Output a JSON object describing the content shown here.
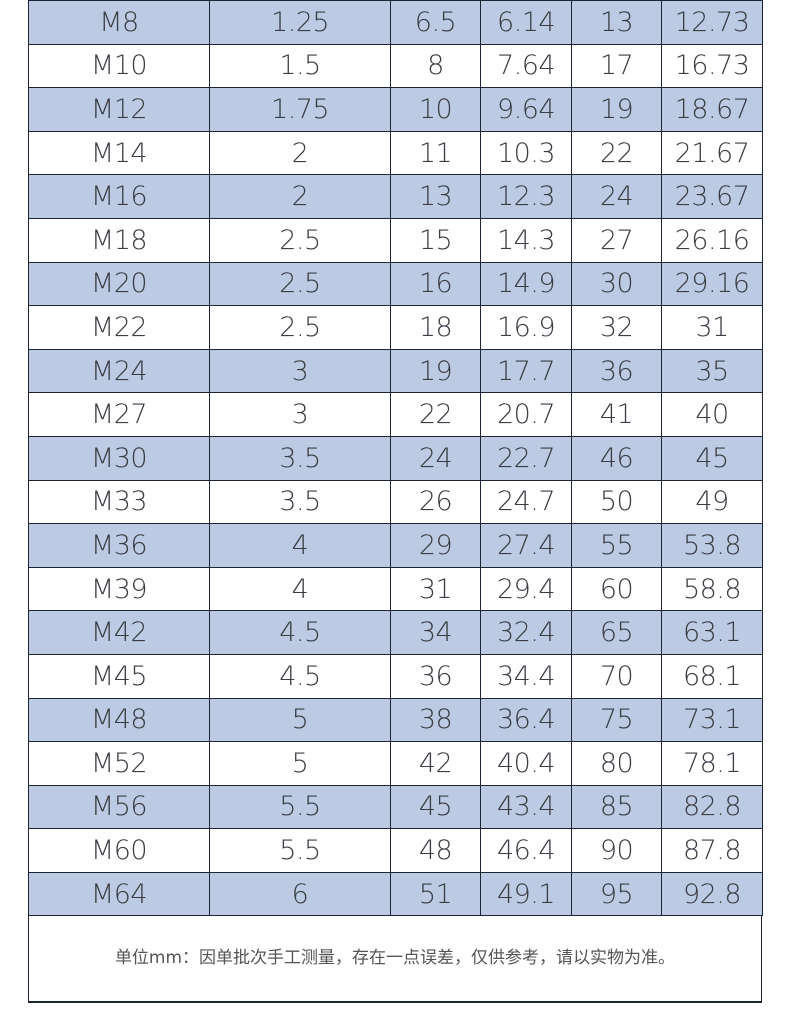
{
  "rows": [
    [
      "M8",
      "1.25",
      "6.5",
      "6.14",
      "13",
      "12.73"
    ],
    [
      "M10",
      "1.5",
      "8",
      "7.64",
      "17",
      "16.73"
    ],
    [
      "M12",
      "1.75",
      "10",
      "9.64",
      "19",
      "18.67"
    ],
    [
      "M14",
      "2",
      "11",
      "10.3",
      "22",
      "21.67"
    ],
    [
      "M16",
      "2",
      "13",
      "12.3",
      "24",
      "23.67"
    ],
    [
      "M18",
      "2.5",
      "15",
      "14.3",
      "27",
      "26.16"
    ],
    [
      "M20",
      "2.5",
      "16",
      "14.9",
      "30",
      "29.16"
    ],
    [
      "M22",
      "2.5",
      "18",
      "16.9",
      "32",
      "31"
    ],
    [
      "M24",
      "3",
      "19",
      "17.7",
      "36",
      "35"
    ],
    [
      "M27",
      "3",
      "22",
      "20.7",
      "41",
      "40"
    ],
    [
      "M30",
      "3.5",
      "24",
      "22.7",
      "46",
      "45"
    ],
    [
      "M33",
      "3.5",
      "26",
      "24.7",
      "50",
      "49"
    ],
    [
      "M36",
      "4",
      "29",
      "27.4",
      "55",
      "53.8"
    ],
    [
      "M39",
      "4",
      "31",
      "29.4",
      "60",
      "58.8"
    ],
    [
      "M42",
      "4.5",
      "34",
      "32.4",
      "65",
      "63.1"
    ],
    [
      "M45",
      "4.5",
      "36",
      "34.4",
      "70",
      "68.1"
    ],
    [
      "M48",
      "5",
      "38",
      "36.4",
      "75",
      "73.1"
    ],
    [
      "M52",
      "5",
      "42",
      "40.4",
      "80",
      "78.1"
    ],
    [
      "M56",
      "5.5",
      "45",
      "43.4",
      "85",
      "82.8"
    ],
    [
      "M60",
      "5.5",
      "48",
      "46.4",
      "90",
      "87.8"
    ],
    [
      "M64",
      "6",
      "51",
      "49.1",
      "95",
      "92.8"
    ]
  ],
  "note": "单位mm：因单批次手工测量，存在一点误差，仅供参考，请以实物为准。",
  "colors": {
    "stripe": "#bccbe3",
    "border": "#1d2535",
    "text": "#3a3d44"
  }
}
